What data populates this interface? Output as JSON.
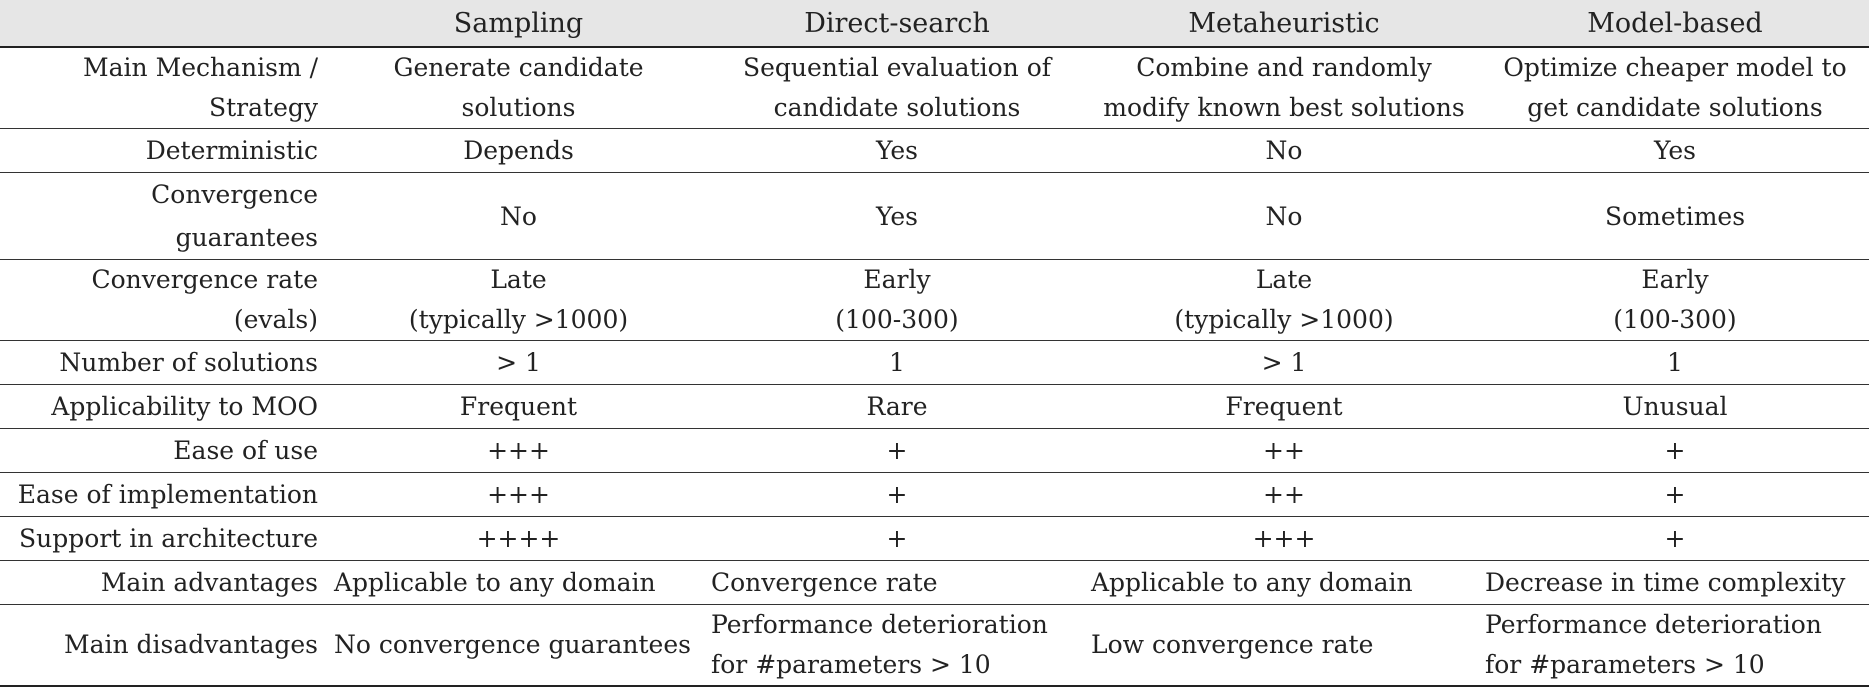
{
  "header": [
    "",
    "Sampling",
    "Direct-search",
    "Metaheuristic",
    "Model-based"
  ],
  "rows": [
    [
      "Main Mechanism /\nStrategy",
      "Generate candidate\nsolutions",
      "Sequential evaluation of\ncandidate solutions",
      "Combine and randomly\nmodify known best solutions",
      "Optimize cheaper model to\nget candidate solutions"
    ],
    [
      "Deterministic",
      "Depends",
      "Yes",
      "No",
      "Yes"
    ],
    [
      "Convergence guarantees",
      "No",
      "Yes",
      "No",
      "Sometimes"
    ],
    [
      "Convergence rate\n(evals)",
      "Late\n(typically >1000)",
      "Early\n(100-300)",
      "Late\n(typically >1000)",
      "Early\n(100-300)"
    ],
    [
      "Number of solutions",
      "> 1",
      "1",
      "> 1",
      "1"
    ],
    [
      "Applicability to MOO",
      "Frequent",
      "Rare",
      "Frequent",
      "Unusual"
    ],
    [
      "Ease of use",
      "+++",
      "+",
      "++",
      "+"
    ],
    [
      "Ease of implementation",
      "+++",
      "+",
      "++",
      "+"
    ],
    [
      "Support in architecture",
      "++++",
      "+",
      "+++",
      "+"
    ],
    [
      "Main advantages",
      "Applicable to any domain",
      "Convergence rate",
      "Applicable to any domain",
      "Decrease in time complexity"
    ],
    [
      "Main disadvantages",
      "No convergence guarantees",
      "Performance deterioration\nfor #parameters > 10",
      "Low convergence rate",
      "Performance deterioration\nfor #parameters > 10"
    ]
  ]
}
